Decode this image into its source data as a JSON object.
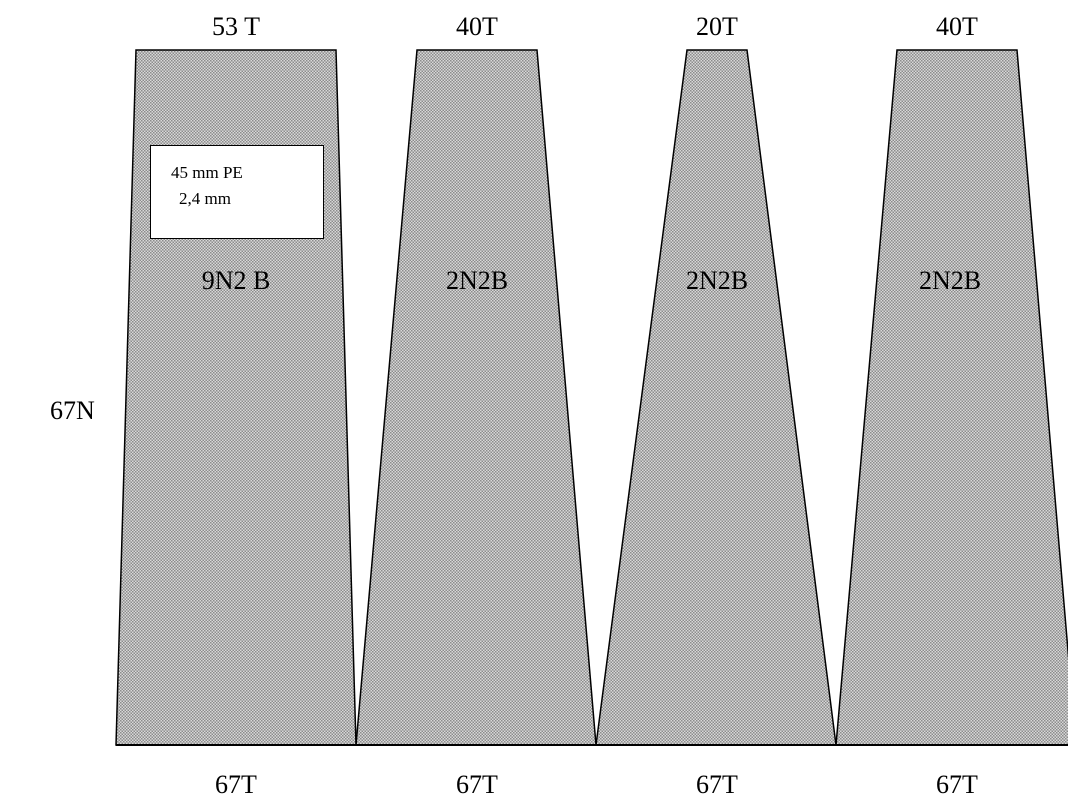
{
  "side_label": "67N",
  "panels": [
    {
      "top": "53 T",
      "middle": "9N2 B",
      "bottom": "67T"
    },
    {
      "top": "40T",
      "middle": "2N2B",
      "bottom": "67T"
    },
    {
      "top": "20T",
      "middle": "2N2B",
      "bottom": "67T"
    },
    {
      "top": "40T",
      "middle": "2N2B",
      "bottom": "67T"
    }
  ],
  "note_box": {
    "line1": "45 mm PE",
    "line2": "2,4 mm"
  },
  "colors": {
    "fill": "#c8c8c8",
    "stroke": "#000000",
    "background": "#ffffff"
  }
}
